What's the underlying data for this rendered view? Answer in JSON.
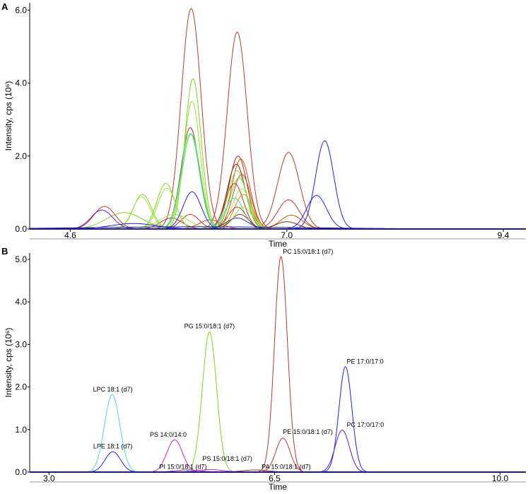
{
  "chart_data": [
    {
      "panel": "A",
      "type": "line",
      "title": "",
      "xlabel": "Time",
      "ylabel": "Intensity, cps (10⁶)",
      "xlim": [
        4.15,
        9.65
      ],
      "ylim": [
        0,
        6.2
      ],
      "xticks": [
        {
          "v": 4.6,
          "label": "4.6"
        },
        {
          "v": 7.0,
          "label": "7.0"
        },
        {
          "v": 9.4,
          "label": "9.4"
        }
      ],
      "yticks": [
        {
          "v": 0,
          "label": "0.0"
        },
        {
          "v": 2,
          "label": "2.0"
        },
        {
          "v": 4,
          "label": "4.0"
        },
        {
          "v": 6,
          "label": "6.0"
        }
      ],
      "series": [
        {
          "color": "#c0392b",
          "peaks": [
            [
              5.94,
              6.05,
              0.11
            ]
          ]
        },
        {
          "color": "#c0392b",
          "peaks": [
            [
              6.45,
              5.4,
              0.11
            ]
          ]
        },
        {
          "color": "#c0392b",
          "peaks": [
            [
              7.02,
              2.1,
              0.12
            ]
          ]
        },
        {
          "color": "#c0392b",
          "peaks": [
            [
              7.02,
              0.8,
              0.12
            ]
          ]
        },
        {
          "color": "#a0302a",
          "peaks": [
            [
              5.93,
              2.78,
              0.1
            ]
          ]
        },
        {
          "color": "#a0302a",
          "peaks": [
            [
              6.46,
              2.0,
              0.1
            ]
          ]
        },
        {
          "color": "#d35400",
          "peaks": [
            [
              6.49,
              1.92,
              0.1
            ]
          ]
        },
        {
          "color": "#8b2500",
          "peaks": [
            [
              6.44,
              1.78,
              0.1
            ]
          ]
        },
        {
          "color": "#d9461c",
          "peaks": [
            [
              6.5,
              1.5,
              0.1
            ]
          ]
        },
        {
          "color": "#b83227",
          "peaks": [
            [
              6.42,
              1.25,
              0.1
            ]
          ]
        },
        {
          "color": "#e67e22",
          "peaks": [
            [
              6.52,
              0.95,
              0.1
            ]
          ]
        },
        {
          "color": "#c0392b",
          "peaks": [
            [
              6.45,
              0.6,
              0.1
            ]
          ]
        },
        {
          "color": "#a0302a",
          "peaks": [
            [
              6.48,
              0.4,
              0.1
            ]
          ]
        },
        {
          "color": "#c0392b",
          "peaks": [
            [
              5.93,
              0.4,
              0.1
            ]
          ]
        },
        {
          "color": "#d35400",
          "peaks": [
            [
              7.05,
              0.38,
              0.12
            ]
          ]
        },
        {
          "color": "#8b2500",
          "peaks": [
            [
              7.0,
              0.2,
              0.12
            ]
          ]
        },
        {
          "color": "#c0392b",
          "peaks": [
            [
              4.98,
              0.62,
              0.12
            ]
          ]
        },
        {
          "color": "#a0302a",
          "peaks": [
            [
              5.72,
              0.3,
              0.12
            ]
          ]
        },
        {
          "color": "#d9461c",
          "peaks": [
            [
              6.15,
              0.25,
              0.12
            ]
          ]
        },
        {
          "color": "#7cd61f",
          "peaks": [
            [
              5.96,
              4.12,
              0.09
            ]
          ]
        },
        {
          "color": "#9ae62a",
          "peaks": [
            [
              5.95,
              3.5,
              0.09
            ]
          ]
        },
        {
          "color": "#6ee04a",
          "peaks": [
            [
              5.94,
              2.6,
              0.1
            ]
          ]
        },
        {
          "color": "#45d9a0",
          "peaks": [
            [
              5.93,
              2.62,
              0.1
            ]
          ]
        },
        {
          "color": "#7cd61f",
          "peaks": [
            [
              5.4,
              0.95,
              0.1
            ]
          ]
        },
        {
          "color": "#a4e43c",
          "peaks": [
            [
              5.39,
              0.88,
              0.1
            ]
          ]
        },
        {
          "color": "#7cd61f",
          "peaks": [
            [
              5.66,
              1.25,
              0.1
            ]
          ]
        },
        {
          "color": "#9ae62a",
          "peaks": [
            [
              5.67,
              1.12,
              0.1
            ]
          ]
        },
        {
          "color": "#6ee04a",
          "peaks": [
            [
              6.45,
              1.6,
              0.1
            ]
          ]
        },
        {
          "color": "#7cd61f",
          "peaks": [
            [
              6.47,
              1.4,
              0.1
            ]
          ]
        },
        {
          "color": "#a4e43c",
          "peaks": [
            [
              6.5,
              1.1,
              0.1
            ]
          ]
        },
        {
          "color": "#45d9a0",
          "peaks": [
            [
              6.42,
              0.85,
              0.1
            ]
          ]
        },
        {
          "color": "#9ae62a",
          "peaks": [
            [
              6.52,
              0.6,
              0.1
            ]
          ]
        },
        {
          "color": "#7cd61f",
          "peaks": [
            [
              5.2,
              0.45,
              0.2
            ]
          ]
        },
        {
          "color": "#a4e43c",
          "peaks": [
            [
              5.75,
              0.4,
              0.16
            ]
          ]
        },
        {
          "color": "#2222dd",
          "peaks": [
            [
              7.42,
              2.42,
              0.1
            ]
          ]
        },
        {
          "color": "#2222dd",
          "peaks": [
            [
              7.33,
              0.92,
              0.11
            ]
          ]
        },
        {
          "color": "#2222dd",
          "peaks": [
            [
              5.95,
              1.02,
              0.1
            ]
          ]
        },
        {
          "color": "#6a1fbf",
          "peaks": [
            [
              4.95,
              0.52,
              0.12
            ]
          ]
        },
        {
          "color": "#2a3fa0",
          "peaks": [
            [
              6.45,
              0.3,
              0.12
            ]
          ]
        },
        {
          "color": "#2222dd",
          "peaks": [
            [
              5.3,
              0.15,
              0.25
            ]
          ]
        },
        {
          "color": "#1a1a8a",
          "peaks": [
            [
              6.0,
              0.06,
              1.2
            ]
          ]
        }
      ]
    },
    {
      "panel": "B",
      "type": "line",
      "title": "",
      "xlabel": "Time",
      "ylabel": "Intensity, cps (10⁶)",
      "xlim": [
        2.7,
        10.4
      ],
      "ylim": [
        0,
        5.15
      ],
      "xticks": [
        {
          "v": 3.0,
          "label": "3.0"
        },
        {
          "v": 6.5,
          "label": "6.5"
        },
        {
          "v": 10.0,
          "label": "10.0"
        }
      ],
      "yticks": [
        {
          "v": 0,
          "label": "0.0"
        },
        {
          "v": 1,
          "label": "1.0"
        },
        {
          "v": 2,
          "label": "2.0"
        },
        {
          "v": 3,
          "label": "3.0"
        },
        {
          "v": 4,
          "label": "4.0"
        },
        {
          "v": 5,
          "label": "5.0"
        }
      ],
      "series": [
        {
          "name": "LPC 18:1 (d7)",
          "color": "#4fd8e6",
          "peaks": [
            [
              3.98,
              1.82,
              0.12
            ]
          ]
        },
        {
          "name": "LPE 18:1 (d7)",
          "color": "#2222dd",
          "peaks": [
            [
              3.99,
              0.48,
              0.12
            ]
          ]
        },
        {
          "name": "PS 14:0/14:0",
          "color": "#cc22cc",
          "peaks": [
            [
              4.95,
              0.76,
              0.12
            ]
          ]
        },
        {
          "name": "PG 15:0/18:1 (d7)",
          "color": "#7cd61f",
          "peaks": [
            [
              5.49,
              3.3,
              0.11
            ]
          ]
        },
        {
          "name": "PC 15:0/18:1 (d7)",
          "color": "#c0392b",
          "peaks": [
            [
              6.6,
              5.07,
              0.1
            ]
          ]
        },
        {
          "name": "PE 15:0/18:1 (d7)",
          "color": "#c0392b",
          "peaks": [
            [
              6.63,
              0.8,
              0.11
            ]
          ]
        },
        {
          "name": "PE 17:0/17:0",
          "color": "#2222dd",
          "peaks": [
            [
              7.6,
              2.48,
              0.1
            ]
          ]
        },
        {
          "name": "PC 17:0/17:0",
          "color": "#5a1fbf",
          "peaks": [
            [
              7.55,
              0.99,
              0.11
            ]
          ]
        },
        {
          "name": "PI 15:0/18:1 (d7)",
          "color": "#8e44ad",
          "peaks": [
            [
              5.15,
              0.05,
              0.2
            ]
          ]
        },
        {
          "name": "PS 15:0/18:1 (d7)",
          "color": "#cc22cc",
          "peaks": [
            [
              5.5,
              0.06,
              0.2
            ]
          ]
        },
        {
          "name": "PA 15:0/18:1 (d7)",
          "color": "#a0302a",
          "peaks": [
            [
              6.2,
              0.05,
              0.2
            ]
          ]
        }
      ],
      "annotations": [
        {
          "text": "LPC 18:1 (d7)",
          "x": 3.99,
          "y": 1.86,
          "anchor": "middle"
        },
        {
          "text": "LPE 18:1 (d7)",
          "x": 3.99,
          "y": 0.52,
          "anchor": "middle"
        },
        {
          "text": "PS 14:0/14:0",
          "x": 4.85,
          "y": 0.8,
          "anchor": "middle"
        },
        {
          "text": "PG 15:0/18:1 (d7)",
          "x": 5.49,
          "y": 3.35,
          "anchor": "middle"
        },
        {
          "text": "PC 15:0/18:1 (d7)",
          "x": 6.63,
          "y": 5.1,
          "anchor": "start"
        },
        {
          "text": "PE 15:0/18:1 (d7)",
          "x": 6.63,
          "y": 0.86,
          "anchor": "start"
        },
        {
          "text": "PE 17:0/17:0",
          "x": 7.62,
          "y": 2.52,
          "anchor": "start"
        },
        {
          "text": "PC 17:0/17:0",
          "x": 7.62,
          "y": 1.03,
          "anchor": "start"
        },
        {
          "text": "PS 15:0/18:1 (d7)",
          "x": 5.38,
          "y": 0.23,
          "anchor": "start"
        },
        {
          "text": "PI 15:0/18:1 (d7)",
          "x": 5.08,
          "y": 0.04,
          "anchor": "middle"
        },
        {
          "text": "PA 15:0/18:1 (d7)",
          "x": 6.3,
          "y": 0.04,
          "anchor": "start"
        }
      ]
    }
  ],
  "panel_labels": {
    "a": "A",
    "b": "B"
  }
}
